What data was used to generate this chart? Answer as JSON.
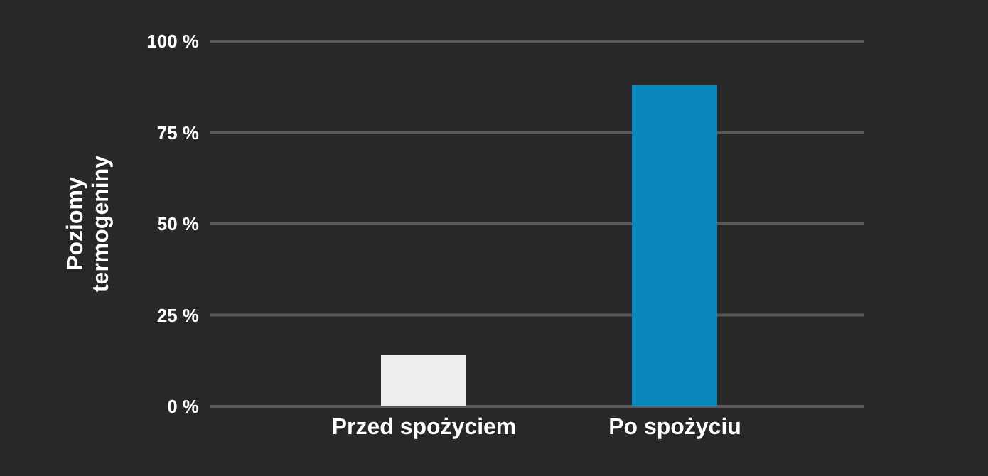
{
  "chart_data": {
    "type": "bar",
    "ylabel": "Poziomy termogeniny",
    "categories": [
      "Przed spożyciem",
      "Po spożyciu"
    ],
    "values": [
      14,
      88
    ],
    "colors": [
      "#eeeeee",
      "#0a88bd"
    ],
    "ylim": [
      0,
      100
    ],
    "yticks": [
      {
        "value": 0,
        "label": "0 %"
      },
      {
        "value": 25,
        "label": "25 %"
      },
      {
        "value": 50,
        "label": "50 %"
      },
      {
        "value": 75,
        "label": "75 %"
      },
      {
        "value": 100,
        "label": "100 %"
      }
    ],
    "grid": "y",
    "legend": false
  }
}
